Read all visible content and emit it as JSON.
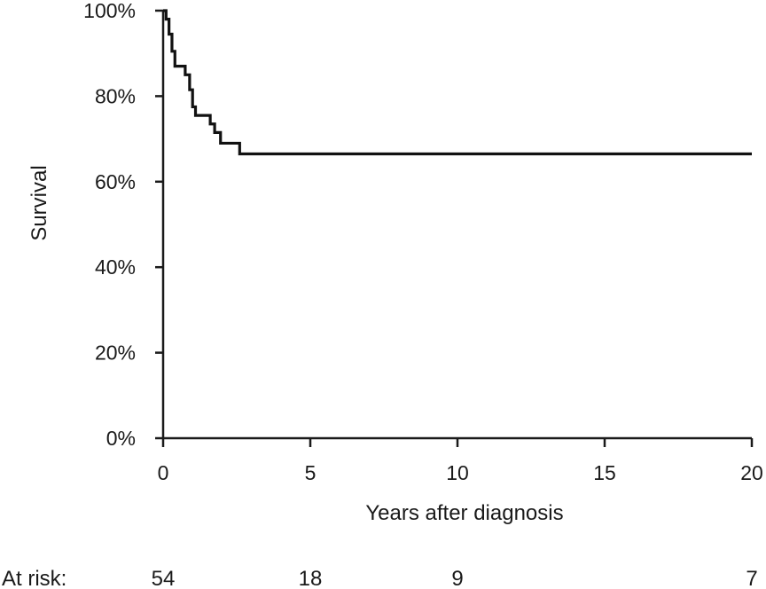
{
  "chart_data": {
    "type": "line",
    "ylabel": "Survival",
    "xlabel": "Years after diagnosis",
    "xlim": [
      0,
      20
    ],
    "ylim": [
      0,
      100
    ],
    "x_ticks": [
      0,
      5,
      10,
      15,
      20
    ],
    "x_tick_labels": [
      "0",
      "5",
      "10",
      "15",
      "20"
    ],
    "y_ticks": [
      0,
      20,
      40,
      60,
      80,
      100
    ],
    "y_tick_labels": [
      "0%",
      "20%",
      "40%",
      "60%",
      "80%",
      "100%"
    ],
    "grid": false,
    "legend": "none",
    "series": [
      {
        "step": true,
        "color": "#111111",
        "x": [
          0,
          0.1,
          0.2,
          0.3,
          0.4,
          0.75,
          0.9,
          1.0,
          1.1,
          1.6,
          1.75,
          1.95,
          2.6,
          20
        ],
        "y": [
          100,
          98,
          94.5,
          90.5,
          87,
          85,
          81.5,
          77.5,
          75.5,
          73.5,
          71.5,
          69,
          66.5,
          66.5
        ]
      }
    ],
    "at_risk": {
      "label": "At risk:",
      "x": [
        0,
        5,
        10,
        20
      ],
      "values": [
        "54",
        "18",
        "9",
        "7"
      ]
    }
  }
}
